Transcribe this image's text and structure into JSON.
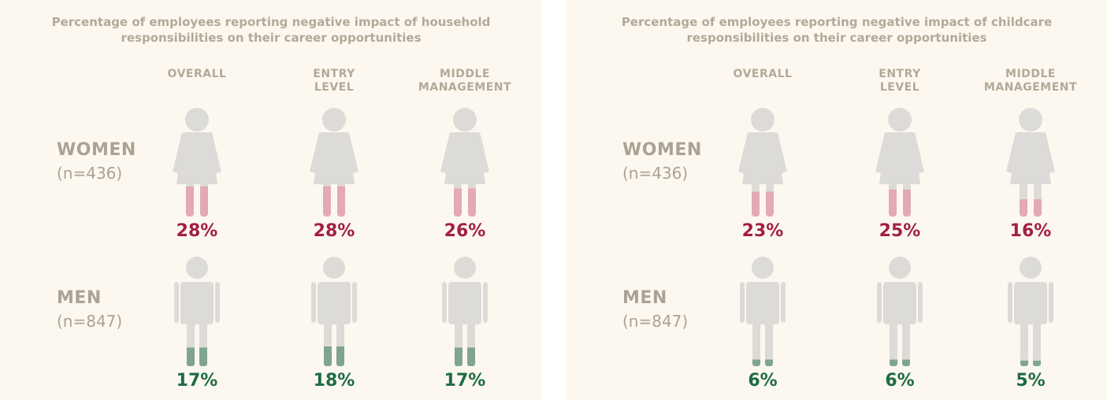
{
  "chart_data": [
    {
      "type": "pictogram",
      "title": "Percentage of employees reporting negative impact of household responsibilities on their career opportunities",
      "categories": [
        "OVERALL",
        "ENTRY LEVEL",
        "MIDDLE MANAGEMENT"
      ],
      "ylim": [
        0,
        100
      ],
      "series": [
        {
          "name": "WOMEN",
          "sample_label": "(n=436)",
          "icon": "woman",
          "color": "#e3a9b5",
          "label_color": "#a11f45",
          "values": [
            28,
            28,
            26
          ],
          "value_labels": [
            "28%",
            "28%",
            "26%"
          ]
        },
        {
          "name": "MEN",
          "sample_label": "(n=847)",
          "icon": "man",
          "color": "#7fa58e",
          "label_color": "#1e6b45",
          "values": [
            17,
            18,
            17
          ],
          "value_labels": [
            "17%",
            "18%",
            "17%"
          ]
        }
      ]
    },
    {
      "type": "pictogram",
      "title": "Percentage of employees reporting negative impact of childcare responsibilities on their career opportunities",
      "categories": [
        "OVERALL",
        "ENTRY LEVEL",
        "MIDDLE MANAGEMENT"
      ],
      "ylim": [
        0,
        100
      ],
      "series": [
        {
          "name": "WOMEN",
          "sample_label": "(n=436)",
          "icon": "woman",
          "color": "#e3a9b5",
          "label_color": "#a11f45",
          "values": [
            23,
            25,
            16
          ],
          "value_labels": [
            "23%",
            "25%",
            "16%"
          ]
        },
        {
          "name": "MEN",
          "sample_label": "(n=847)",
          "icon": "man",
          "color": "#7fa58e",
          "label_color": "#1e6b45",
          "values": [
            6,
            6,
            5
          ],
          "value_labels": [
            "6%",
            "6%",
            "5%"
          ]
        }
      ]
    }
  ]
}
